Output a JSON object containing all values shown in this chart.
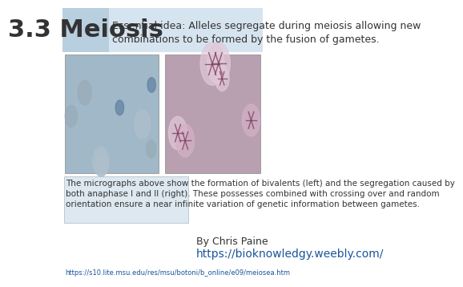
{
  "title": "3.3 Meiosis",
  "essential_idea": "Essential idea: Alleles segregate during meiosis allowing new\ncombinations to be formed by the fusion of gametes.",
  "caption": "The micrographs above show the formation of bivalents (left) and the segregation caused by\nboth anaphase I and II (right). These possesses combined with crossing over and random\norientation ensure a near infinite variation of genetic information between gametes.",
  "author": "By Chris Paine",
  "url": "https://bioknowledgy.weebly.com/",
  "source_url": "https://s10.lite.msu.edu/res/msu/botoni/b_online/e09/meiosea.htm",
  "header_bg": "#d6e4f0",
  "title_bg": "#b8cfe0",
  "caption_bg": "#dde8f0",
  "bg_color": "#ffffff",
  "title_fontsize": 22,
  "idea_fontsize": 9,
  "caption_fontsize": 7.5,
  "author_fontsize": 9,
  "url_fontsize": 10,
  "source_fontsize": 6
}
